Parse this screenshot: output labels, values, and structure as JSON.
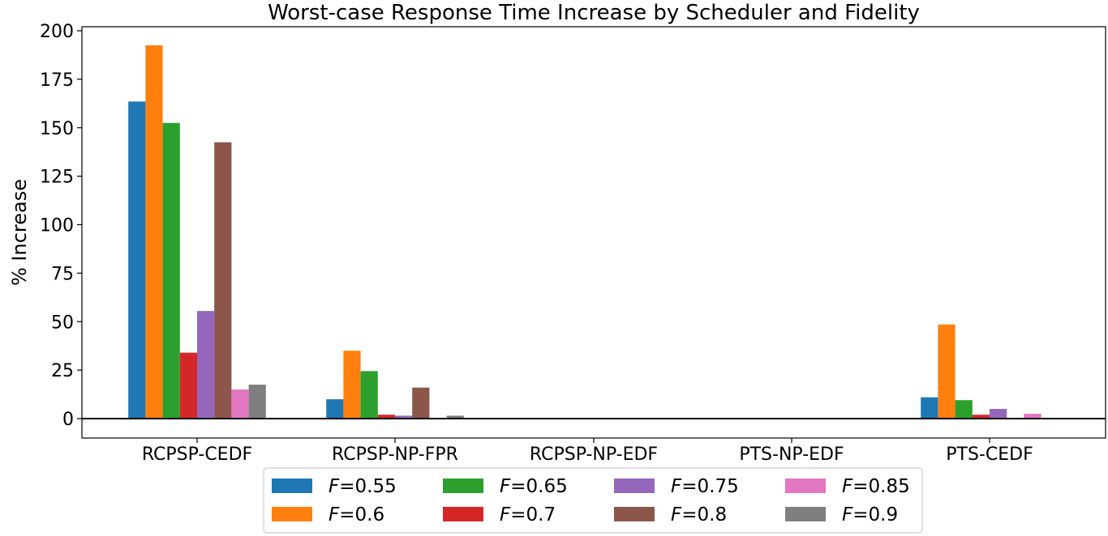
{
  "chart_data": {
    "type": "bar",
    "title": "Worst-case Response Time Increase by Scheduler and Fidelity",
    "xlabel": "",
    "ylabel": "% Increase",
    "ylim": [
      -10,
      202
    ],
    "yticks": [
      "0",
      "25",
      "50",
      "75",
      "100",
      "125",
      "150",
      "175",
      "200"
    ],
    "categories": [
      "RCPSP-CEDF",
      "RCPSP-NP-FPR",
      "RCPSP-NP-EDF",
      "PTS-NP-EDF",
      "PTS-CEDF"
    ],
    "series": [
      {
        "name": "=0.55",
        "color": "#1f77b4",
        "values": [
          163.5,
          10,
          0,
          0,
          11
        ]
      },
      {
        "name": "=0.6",
        "color": "#ff7f0e",
        "values": [
          192.5,
          35,
          0,
          0,
          48.5
        ]
      },
      {
        "name": "=0.65",
        "color": "#2ca02c",
        "values": [
          152.5,
          24.5,
          0,
          0,
          9.5
        ]
      },
      {
        "name": "=0.7",
        "color": "#d62728",
        "values": [
          34,
          2,
          0,
          0,
          2
        ]
      },
      {
        "name": "=0.75",
        "color": "#9467bd",
        "values": [
          55.5,
          1.5,
          0,
          0,
          5
        ]
      },
      {
        "name": "=0.8",
        "color": "#8c564b",
        "values": [
          142.5,
          16,
          0,
          0,
          0
        ]
      },
      {
        "name": "=0.85",
        "color": "#e377c2",
        "values": [
          15,
          0,
          0,
          0,
          2.5
        ]
      },
      {
        "name": "=0.9",
        "color": "#7f7f7f",
        "values": [
          17.5,
          1.5,
          0,
          0,
          0
        ]
      }
    ],
    "legend_prefix": "F",
    "legend_placement": "bottom-center",
    "grid": false,
    "zero_line": true
  }
}
